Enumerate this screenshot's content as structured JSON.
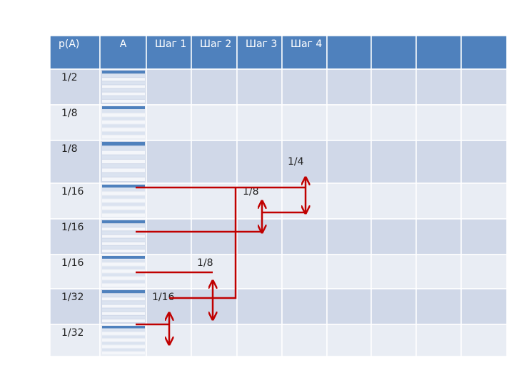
{
  "table": {
    "header": [
      "p(A)",
      "A",
      "Шаг 1",
      "Шаг 2",
      "Шаг 3",
      "Шаг 4"
    ],
    "rows": [
      [
        "1/2"
      ],
      [
        "1/8"
      ],
      [
        "1/8",
        null,
        null,
        null,
        null,
        "1/4"
      ],
      [
        "1/16",
        null,
        null,
        null,
        "1/8"
      ],
      [
        "1/16"
      ],
      [
        "1/16",
        null,
        null,
        "1/8"
      ],
      [
        "1/32",
        null,
        "1/16"
      ],
      [
        "1/32"
      ]
    ]
  }
}
